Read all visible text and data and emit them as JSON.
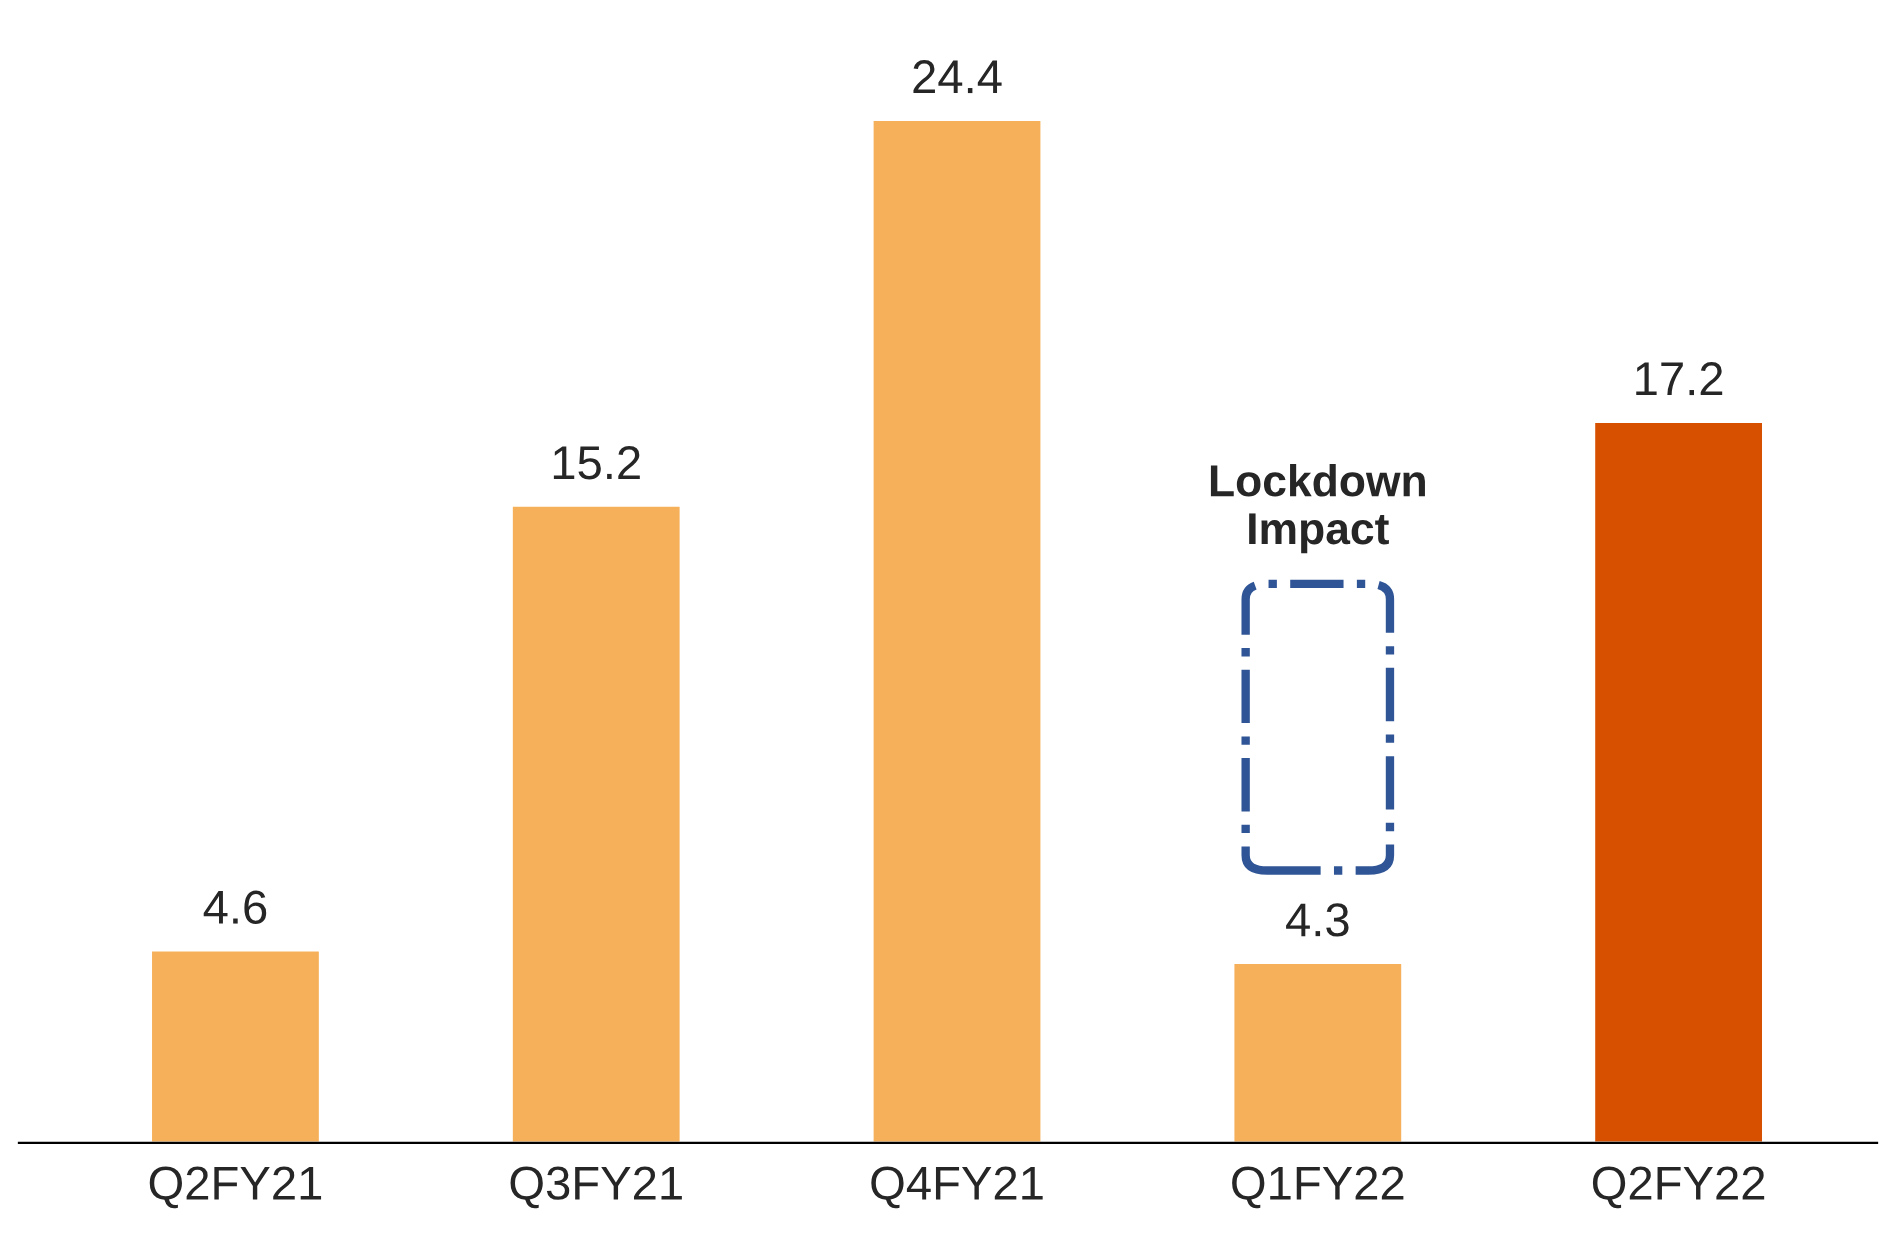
{
  "chart_data": {
    "type": "bar",
    "categories": [
      "Q2FY21",
      "Q3FY21",
      "Q4FY21",
      "Q1FY22",
      "Q2FY22"
    ],
    "values": [
      4.6,
      15.2,
      24.4,
      4.3,
      17.2
    ],
    "colors": [
      "#f6b05a",
      "#f6b05a",
      "#f6b05a",
      "#f6b05a",
      "#d75000"
    ],
    "data_labels": true,
    "annotations": [
      "Lockdown\nImpact"
    ]
  }
}
